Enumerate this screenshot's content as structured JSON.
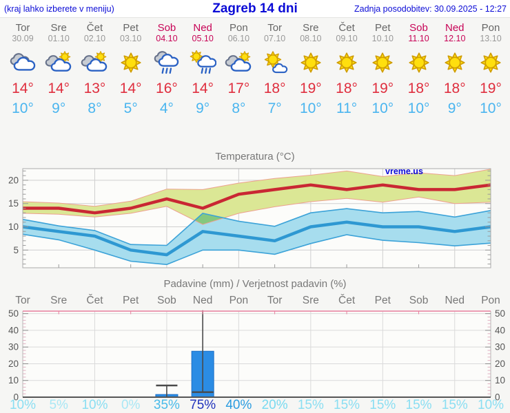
{
  "header": {
    "left_note": "(kraj lahko izberete v meniju)",
    "title": "Zagreb 14 dni",
    "updated": "Zadnja posodobitev: 30.09.2025 - 12:27"
  },
  "colors": {
    "header_blue": "#0b0bd6",
    "weekend": "#c70356",
    "tmax_text": "#df2e3e",
    "tmin_text": "#4ab5ef",
    "max_line": "#c92733",
    "max_band": "#dbe795",
    "max_band_edge": "#eda08e",
    "min_line": "#2e98d2",
    "min_band": "#a7ddee",
    "min_band_edge": "#3ba2d8",
    "overlap": "#84c87e",
    "bar": "#2b8ce4",
    "bar_border": "#1a6ec6",
    "whisker": "#4a4a4a",
    "precip_axis_pink": "#e87f9e"
  },
  "days": [
    {
      "name": "Tor",
      "date": "30.09",
      "weekend": false,
      "icon": "cloudy",
      "tmax": 14,
      "tmin": 10,
      "prob": "10%",
      "prob_color": "#8adef2"
    },
    {
      "name": "Sre",
      "date": "01.10",
      "weekend": false,
      "icon": "sun-cloud",
      "tmax": 14,
      "tmin": 9,
      "prob": "5%",
      "prob_color": "#a9e7f5"
    },
    {
      "name": "Čet",
      "date": "02.10",
      "weekend": false,
      "icon": "sun-cloud",
      "tmax": 13,
      "tmin": 8,
      "prob": "10%",
      "prob_color": "#8adef2"
    },
    {
      "name": "Pet",
      "date": "03.10",
      "weekend": false,
      "icon": "sun",
      "tmax": 14,
      "tmin": 5,
      "prob": "0%",
      "prob_color": "#a9e7f5"
    },
    {
      "name": "Sob",
      "date": "04.10",
      "weekend": true,
      "icon": "rain",
      "tmax": 16,
      "tmin": 4,
      "prob": "35%",
      "prob_color": "#49bbe9"
    },
    {
      "name": "Ned",
      "date": "05.10",
      "weekend": true,
      "icon": "sun-rain",
      "tmax": 14,
      "tmin": 9,
      "prob": "75%",
      "prob_color": "#2133bc"
    },
    {
      "name": "Pon",
      "date": "06.10",
      "weekend": false,
      "icon": "sun-cloud",
      "tmax": 17,
      "tmin": 8,
      "prob": "40%",
      "prob_color": "#2a9ce0"
    },
    {
      "name": "Tor",
      "date": "07.10",
      "weekend": false,
      "icon": "sun-small-cloud",
      "tmax": 18,
      "tmin": 7,
      "prob": "20%",
      "prob_color": "#79daf0"
    },
    {
      "name": "Sre",
      "date": "08.10",
      "weekend": false,
      "icon": "sun",
      "tmax": 19,
      "tmin": 10,
      "prob": "15%",
      "prob_color": "#8adef2"
    },
    {
      "name": "Čet",
      "date": "09.10",
      "weekend": false,
      "icon": "sun",
      "tmax": 18,
      "tmin": 11,
      "prob": "15%",
      "prob_color": "#8adef2"
    },
    {
      "name": "Pet",
      "date": "10.10",
      "weekend": false,
      "icon": "sun",
      "tmax": 19,
      "tmin": 10,
      "prob": "15%",
      "prob_color": "#8adef2"
    },
    {
      "name": "Sob",
      "date": "11.10",
      "weekend": true,
      "icon": "sun",
      "tmax": 18,
      "tmin": 10,
      "prob": "15%",
      "prob_color": "#8adef2"
    },
    {
      "name": "Ned",
      "date": "12.10",
      "weekend": true,
      "icon": "sun",
      "tmax": 18,
      "tmin": 9,
      "prob": "15%",
      "prob_color": "#8adef2"
    },
    {
      "name": "Pon",
      "date": "13.10",
      "weekend": false,
      "icon": "sun",
      "tmax": 19,
      "tmin": 10,
      "prob": "10%",
      "prob_color": "#8adef2"
    }
  ],
  "chart_data": [
    {
      "type": "line",
      "title": "Temperatura (°C)",
      "watermark": "vreme.us",
      "categories": [
        "Tor",
        "Sre",
        "Čet",
        "Pet",
        "Sob",
        "Ned",
        "Pon",
        "Tor",
        "Sre",
        "Čet",
        "Pet",
        "Sob",
        "Ned",
        "Pon"
      ],
      "ylim": [
        1.2,
        22.5
      ],
      "yticks": [
        5,
        10,
        15,
        20
      ],
      "grid": true,
      "series": [
        {
          "name": "max",
          "values": [
            14,
            14,
            13,
            14,
            16,
            14,
            17,
            18,
            19,
            18,
            19,
            18,
            18,
            19
          ]
        },
        {
          "name": "max_upper",
          "values": [
            15.4,
            15.1,
            14.4,
            15.5,
            18.1,
            18.0,
            19.4,
            20.4,
            21.1,
            22.0,
            20.8,
            21.6,
            21.0,
            22.4
          ]
        },
        {
          "name": "max_lower",
          "values": [
            12.9,
            12.7,
            12.1,
            12.9,
            14.4,
            10.5,
            12.9,
            14.3,
            15.4,
            16.1,
            15.3,
            16.4,
            15.0,
            15.3
          ]
        },
        {
          "name": "min",
          "values": [
            10,
            9,
            8,
            5,
            4,
            9,
            8,
            7,
            10,
            11,
            10,
            10,
            9,
            10
          ]
        },
        {
          "name": "min_upper",
          "values": [
            11.6,
            10.2,
            9.2,
            6.2,
            6.0,
            12.9,
            11.2,
            10.1,
            13.0,
            13.9,
            13.0,
            13.3,
            12.1,
            13.5
          ]
        },
        {
          "name": "min_lower",
          "values": [
            8.4,
            7.2,
            5.0,
            2.6,
            1.9,
            5.0,
            5.0,
            4.1,
            6.4,
            8.3,
            7.1,
            6.6,
            5.9,
            6.5
          ]
        }
      ]
    },
    {
      "type": "bar",
      "title": "Padavine (mm) / Verjetnost padavin (%)",
      "categories": [
        "Tor",
        "Sre",
        "Čet",
        "Pet",
        "Sob",
        "Ned",
        "Pon",
        "Tor",
        "Sre",
        "Čet",
        "Pet",
        "Sob",
        "Ned",
        "Pon"
      ],
      "values": [
        0,
        0,
        0,
        0,
        1.6,
        27.5,
        0,
        0,
        0,
        0,
        0,
        0,
        0,
        0
      ],
      "whisker_low": [
        null,
        null,
        null,
        null,
        0,
        3,
        null,
        null,
        null,
        null,
        null,
        null,
        null,
        null
      ],
      "whisker_high": [
        null,
        null,
        null,
        null,
        7,
        52,
        null,
        null,
        null,
        null,
        null,
        null,
        null,
        null
      ],
      "probabilities": [
        "10%",
        "5%",
        "10%",
        "0%",
        "35%",
        "75%",
        "40%",
        "20%",
        "15%",
        "15%",
        "15%",
        "15%",
        "15%",
        "10%"
      ],
      "ylim": [
        0,
        51.5
      ],
      "yticks": [
        0,
        10,
        20,
        30,
        40,
        50
      ],
      "grid": true
    }
  ]
}
